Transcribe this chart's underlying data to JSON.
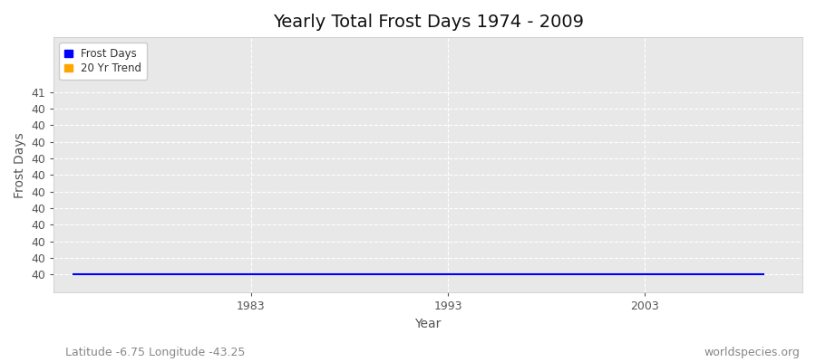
{
  "title": "Yearly Total Frost Days 1974 - 2009",
  "xlabel": "Year",
  "ylabel": "Frost Days",
  "background_color": "#ffffff",
  "plot_bg_color": "#e8e8e8",
  "grid_color": "#ffffff",
  "years": [
    1974,
    1975,
    1976,
    1977,
    1978,
    1979,
    1980,
    1981,
    1982,
    1983,
    1984,
    1985,
    1986,
    1987,
    1988,
    1989,
    1990,
    1991,
    1992,
    1993,
    1994,
    1995,
    1996,
    1997,
    1998,
    1999,
    2000,
    2001,
    2002,
    2003,
    2004,
    2005,
    2006,
    2007,
    2008,
    2009
  ],
  "frost_days": [
    40,
    40,
    40,
    40,
    40,
    40,
    40,
    40,
    40,
    40,
    40,
    40,
    40,
    40,
    40,
    40,
    40,
    40,
    40,
    40,
    40,
    40,
    40,
    40,
    40,
    40,
    40,
    40,
    40,
    40,
    40,
    40,
    40,
    40,
    40,
    40
  ],
  "frost_color": "#0000ff",
  "trend_color": "#ffa500",
  "xlim": [
    1973,
    2011
  ],
  "ylim_min": 39.9,
  "ylim_max": 41.3,
  "ytick_count": 12,
  "ytick_min": 40.0,
  "ytick_max": 41.0,
  "xticks": [
    1983,
    1993,
    2003
  ],
  "legend_labels": [
    "Frost Days",
    "20 Yr Trend"
  ],
  "subtitle": "Latitude -6.75 Longitude -43.25",
  "watermark": "worldspecies.org",
  "title_fontsize": 14,
  "axis_label_fontsize": 10,
  "tick_fontsize": 9,
  "subtitle_fontsize": 9
}
